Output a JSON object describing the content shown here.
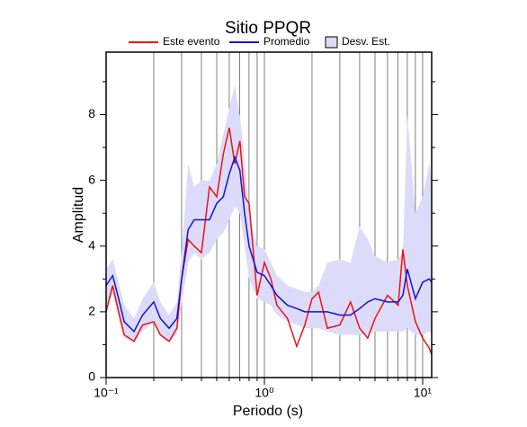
{
  "chart_data": {
    "type": "line",
    "title": "Sitio PPQR",
    "x_label": "Periodo (s)",
    "y_label": "Amplitud",
    "log_x": true,
    "grid_x": true,
    "xlim": [
      0.1,
      11.4
    ],
    "xticks": [
      {
        "value": 0.1,
        "label": "10⁻¹"
      },
      {
        "value": 1,
        "label": "10⁰"
      },
      {
        "value": 10,
        "label": "10¹"
      }
    ],
    "ylim": [
      0,
      9.9
    ],
    "yticks": [
      0,
      2,
      4,
      6,
      8
    ],
    "yminor_ticks": [
      1,
      3,
      5,
      7,
      9
    ],
    "x": [
      0.1,
      0.11,
      0.12,
      0.13,
      0.15,
      0.17,
      0.2,
      0.22,
      0.25,
      0.28,
      0.3,
      0.33,
      0.36,
      0.4,
      0.45,
      0.5,
      0.55,
      0.6,
      0.65,
      0.7,
      0.75,
      0.8,
      0.9,
      1.0,
      1.1,
      1.2,
      1.4,
      1.6,
      1.8,
      2.0,
      2.2,
      2.5,
      3.0,
      3.5,
      4.0,
      4.5,
      5.0,
      6.0,
      7.0,
      7.5,
      8.0,
      9.0,
      10.0,
      11.0,
      11.4
    ],
    "series": [
      {
        "name": "Este evento",
        "color": "#ee1111",
        "values": [
          2.0,
          2.8,
          2.0,
          1.3,
          1.1,
          1.6,
          1.7,
          1.3,
          1.1,
          1.5,
          3.0,
          4.2,
          4.0,
          3.8,
          5.8,
          5.5,
          6.8,
          7.6,
          6.5,
          7.2,
          5.5,
          5.3,
          2.5,
          3.5,
          3.0,
          2.2,
          1.8,
          0.95,
          1.6,
          2.4,
          2.6,
          1.5,
          1.6,
          2.3,
          1.5,
          1.2,
          1.8,
          2.5,
          2.2,
          3.9,
          2.8,
          1.7,
          1.2,
          0.9,
          0.7
        ]
      },
      {
        "name": "Promedio",
        "color": "#1111dd",
        "values": [
          2.8,
          3.1,
          2.4,
          1.7,
          1.4,
          1.9,
          2.3,
          1.8,
          1.5,
          1.8,
          3.0,
          4.5,
          4.8,
          4.8,
          4.8,
          5.3,
          5.5,
          6.2,
          6.7,
          6.3,
          5.0,
          4.0,
          3.2,
          3.1,
          2.8,
          2.5,
          2.2,
          2.1,
          2.0,
          2.0,
          2.0,
          2.0,
          1.9,
          1.9,
          2.1,
          2.3,
          2.4,
          2.3,
          2.3,
          2.5,
          3.3,
          2.4,
          2.9,
          3.0,
          2.9
        ]
      },
      {
        "name": "Desv. Est.",
        "color": "#dcdcfa",
        "lower": [
          2.2,
          2.5,
          1.8,
          1.2,
          1.1,
          1.4,
          1.7,
          1.3,
          1.1,
          1.3,
          2.2,
          3.5,
          3.8,
          3.6,
          3.8,
          4.2,
          4.4,
          4.8,
          5.2,
          5.0,
          4.0,
          3.0,
          2.4,
          2.3,
          2.2,
          1.9,
          1.7,
          1.6,
          1.5,
          1.5,
          1.5,
          1.4,
          1.3,
          1.3,
          1.3,
          1.3,
          1.4,
          1.4,
          1.4,
          1.4,
          1.5,
          1.3,
          1.3,
          1.4,
          1.4
        ],
        "upper": [
          3.3,
          3.6,
          2.9,
          2.2,
          1.8,
          2.4,
          2.9,
          2.3,
          1.9,
          2.3,
          3.8,
          6.5,
          5.8,
          6.0,
          6.0,
          6.5,
          7.4,
          8.2,
          8.9,
          8.0,
          6.6,
          5.0,
          4.0,
          3.9,
          3.5,
          3.1,
          2.8,
          2.7,
          2.6,
          2.6,
          2.8,
          3.5,
          3.6,
          3.5,
          4.6,
          4.2,
          3.7,
          3.5,
          3.6,
          3.8,
          8.0,
          5.0,
          5.5,
          6.5,
          6.0
        ]
      }
    ]
  }
}
